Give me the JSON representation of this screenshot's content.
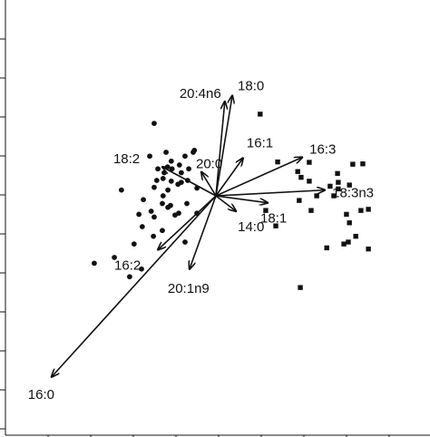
{
  "chart_data": {
    "type": "scatter",
    "title": "",
    "xlabel": "",
    "ylabel": "",
    "xlim": [
      -4.6,
      4.5
    ],
    "ylim": [
      -4.9,
      4.9
    ],
    "grid": false,
    "legend": "none",
    "colors": {
      "ink": "#111111",
      "background": "#ffffff"
    },
    "series": [
      {
        "marker": "circle",
        "points": [
          [
            -1.66,
            1.88
          ],
          [
            -0.58,
            1.18
          ],
          [
            -1.34,
            1.13
          ],
          [
            -0.61,
            1.13
          ],
          [
            -0.83,
            1.03
          ],
          [
            -1.78,
            1.03
          ],
          [
            -1.2,
            0.9
          ],
          [
            -0.98,
            0.8
          ],
          [
            -1.3,
            0.75
          ],
          [
            -1.18,
            0.7
          ],
          [
            -0.73,
            0.7
          ],
          [
            -1.56,
            0.7
          ],
          [
            -1.39,
            0.6
          ],
          [
            -0.93,
            0.6
          ],
          [
            -1.59,
            0.4
          ],
          [
            -1.42,
            0.45
          ],
          [
            -0.76,
            0.4
          ],
          [
            -1.2,
            0.38
          ],
          [
            -0.93,
            0.35
          ],
          [
            -1.02,
            0.3
          ],
          [
            -1.66,
            0.22
          ],
          [
            -2.54,
            0.15
          ],
          [
            -1.29,
            0.15
          ],
          [
            -0.51,
            0.2
          ],
          [
            -1.42,
            0.0
          ],
          [
            -2.07,
            -0.48
          ],
          [
            -1.74,
            -0.4
          ],
          [
            -1.95,
            -0.1
          ],
          [
            -1.44,
            -0.2
          ],
          [
            -1.22,
            -0.25
          ],
          [
            -0.78,
            -0.2
          ],
          [
            -0.51,
            -0.45
          ],
          [
            -1.66,
            -0.55
          ],
          [
            -1.29,
            -0.3
          ],
          [
            -1.0,
            -0.45
          ],
          [
            -1.98,
            -0.8
          ],
          [
            -1.44,
            -0.9
          ],
          [
            -1.68,
            -1.05
          ],
          [
            -2.2,
            -1.25
          ],
          [
            -3.27,
            -1.75
          ],
          [
            -2.73,
            -1.6
          ],
          [
            -2.0,
            -1.9
          ],
          [
            -2.32,
            -2.1
          ],
          [
            -1.1,
            -0.5
          ],
          [
            -0.83,
            -1.2
          ]
        ]
      },
      {
        "marker": "square",
        "points": [
          [
            1.19,
            2.12
          ],
          [
            1.66,
            0.88
          ],
          [
            2.51,
            0.87
          ],
          [
            3.68,
            0.82
          ],
          [
            3.95,
            0.83
          ],
          [
            2.2,
            0.63
          ],
          [
            2.29,
            0.48
          ],
          [
            2.51,
            0.38
          ],
          [
            3.27,
            0.58
          ],
          [
            3.29,
            0.35
          ],
          [
            3.59,
            0.28
          ],
          [
            3.07,
            0.25
          ],
          [
            3.29,
            0.18
          ],
          [
            3.17,
            0.0
          ],
          [
            2.71,
            0.0
          ],
          [
            2.24,
            -0.12
          ],
          [
            4.1,
            -0.35
          ],
          [
            2.56,
            -0.38
          ],
          [
            3.9,
            -0.38
          ],
          [
            3.51,
            -0.48
          ],
          [
            1.61,
            -0.78
          ],
          [
            3.59,
            -0.7
          ],
          [
            3.56,
            -1.2
          ],
          [
            3.76,
            -1.05
          ],
          [
            3.44,
            -1.25
          ],
          [
            2.98,
            -1.35
          ],
          [
            4.1,
            -1.38
          ],
          [
            2.27,
            -2.38
          ],
          [
            1.34,
            -0.38
          ]
        ]
      }
    ],
    "vectors": [
      {
        "label": "20:4n6",
        "x": 0.24,
        "y": 2.45
      },
      {
        "label": "18:0",
        "x": 0.44,
        "y": 2.6
      },
      {
        "label": "16:1",
        "x": 0.73,
        "y": 0.98
      },
      {
        "label": "16:3",
        "x": 2.32,
        "y": 1.0
      },
      {
        "label": "18:3n3",
        "x": 2.93,
        "y": 0.15
      },
      {
        "label": "18:1",
        "x": 1.39,
        "y": -0.18
      },
      {
        "label": "14:0",
        "x": 0.54,
        "y": -0.4
      },
      {
        "label": "18:2",
        "x": -1.44,
        "y": 0.75
      },
      {
        "label": "20:0",
        "x": -0.39,
        "y": 0.62
      },
      {
        "label": "16:2",
        "x": -1.56,
        "y": -1.4
      },
      {
        "label": "20:1n9",
        "x": -0.71,
        "y": -1.9
      },
      {
        "label": "16:0",
        "x": -4.42,
        "y": -4.7
      }
    ]
  }
}
